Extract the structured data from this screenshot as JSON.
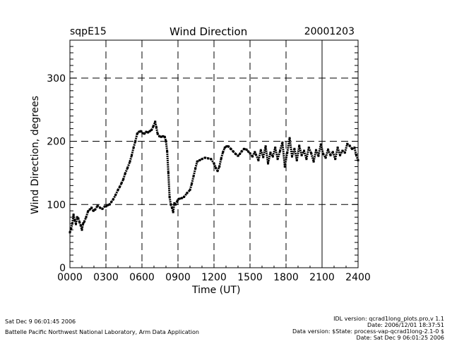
{
  "chart_data": {
    "type": "scatter",
    "title": "Wind Direction",
    "site": "sqpE15",
    "date": "20001203",
    "xlabel": "Time (UT)",
    "ylabel": "Wind Direction, degrees",
    "xlim": [
      0,
      24
    ],
    "ylim": [
      0,
      360
    ],
    "xticks": [
      0,
      3,
      6,
      9,
      12,
      15,
      18,
      21,
      24
    ],
    "xtick_labels": [
      "0000",
      "0300",
      "0600",
      "0900",
      "1200",
      "1500",
      "1800",
      "2100",
      "2400"
    ],
    "yticks": [
      0,
      100,
      200,
      300
    ],
    "ytick_labels": [
      "0",
      "100",
      "200",
      "300"
    ],
    "grid": "dashed at major ticks",
    "points": [
      [
        0.0,
        56
      ],
      [
        0.1,
        62
      ],
      [
        0.2,
        70
      ],
      [
        0.3,
        84
      ],
      [
        0.4,
        75
      ],
      [
        0.5,
        69
      ],
      [
        0.6,
        80
      ],
      [
        0.7,
        78
      ],
      [
        0.8,
        72
      ],
      [
        0.9,
        67
      ],
      [
        1.0,
        60
      ],
      [
        1.1,
        70
      ],
      [
        1.2,
        73
      ],
      [
        1.35,
        80
      ],
      [
        1.5,
        89
      ],
      [
        1.65,
        92
      ],
      [
        1.8,
        95
      ],
      [
        1.95,
        90
      ],
      [
        2.1,
        92
      ],
      [
        2.3,
        98
      ],
      [
        2.5,
        95
      ],
      [
        2.7,
        93
      ],
      [
        2.9,
        97
      ],
      [
        3.0,
        97
      ],
      [
        3.15,
        99
      ],
      [
        3.3,
        100
      ],
      [
        3.45,
        104
      ],
      [
        3.6,
        108
      ],
      [
        3.8,
        115
      ],
      [
        4.0,
        123
      ],
      [
        4.15,
        128
      ],
      [
        4.3,
        134
      ],
      [
        4.45,
        140
      ],
      [
        4.6,
        149
      ],
      [
        4.8,
        158
      ],
      [
        5.0,
        168
      ],
      [
        5.15,
        178
      ],
      [
        5.3,
        190
      ],
      [
        5.45,
        200
      ],
      [
        5.6,
        212
      ],
      [
        5.75,
        215
      ],
      [
        5.9,
        216
      ],
      [
        6.05,
        213
      ],
      [
        6.2,
        212
      ],
      [
        6.35,
        215
      ],
      [
        6.5,
        214
      ],
      [
        6.65,
        216
      ],
      [
        6.8,
        218
      ],
      [
        6.95,
        224
      ],
      [
        7.1,
        231
      ],
      [
        7.2,
        222
      ],
      [
        7.3,
        212
      ],
      [
        7.45,
        208
      ],
      [
        7.6,
        207
      ],
      [
        7.75,
        208
      ],
      [
        7.9,
        207
      ],
      [
        8.0,
        200
      ],
      [
        8.1,
        184
      ],
      [
        8.2,
        150
      ],
      [
        8.3,
        112
      ],
      [
        8.4,
        100
      ],
      [
        8.5,
        95
      ],
      [
        8.6,
        88
      ],
      [
        8.7,
        102
      ],
      [
        8.8,
        100
      ],
      [
        8.95,
        106
      ],
      [
        9.1,
        109
      ],
      [
        9.3,
        110
      ],
      [
        9.5,
        112
      ],
      [
        9.75,
        118
      ],
      [
        10.0,
        123
      ],
      [
        10.15,
        133
      ],
      [
        10.3,
        145
      ],
      [
        10.45,
        157
      ],
      [
        10.6,
        168
      ],
      [
        10.8,
        170
      ],
      [
        11.0,
        172
      ],
      [
        11.25,
        174
      ],
      [
        11.5,
        173
      ],
      [
        11.75,
        172
      ],
      [
        12.0,
        165
      ],
      [
        12.15,
        158
      ],
      [
        12.3,
        153
      ],
      [
        12.45,
        160
      ],
      [
        12.6,
        173
      ],
      [
        12.75,
        183
      ],
      [
        12.9,
        190
      ],
      [
        13.05,
        192
      ],
      [
        13.2,
        192
      ],
      [
        13.4,
        188
      ],
      [
        13.6,
        184
      ],
      [
        13.8,
        180
      ],
      [
        14.0,
        177
      ],
      [
        14.15,
        180
      ],
      [
        14.3,
        184
      ],
      [
        14.5,
        188
      ],
      [
        14.7,
        187
      ],
      [
        14.85,
        184
      ],
      [
        15.0,
        181
      ],
      [
        15.2,
        176
      ],
      [
        15.4,
        183
      ],
      [
        15.5,
        179
      ],
      [
        15.7,
        170
      ],
      [
        15.9,
        186
      ],
      [
        16.1,
        175
      ],
      [
        16.3,
        192
      ],
      [
        16.5,
        165
      ],
      [
        16.7,
        182
      ],
      [
        16.9,
        176
      ],
      [
        17.1,
        190
      ],
      [
        17.3,
        172
      ],
      [
        17.5,
        185
      ],
      [
        17.7,
        198
      ],
      [
        17.9,
        160
      ],
      [
        18.1,
        182
      ],
      [
        18.3,
        205
      ],
      [
        18.5,
        176
      ],
      [
        18.7,
        188
      ],
      [
        18.9,
        170
      ],
      [
        19.1,
        193
      ],
      [
        19.3,
        178
      ],
      [
        19.5,
        185
      ],
      [
        19.7,
        172
      ],
      [
        19.9,
        190
      ],
      [
        20.1,
        181
      ],
      [
        20.3,
        168
      ],
      [
        20.5,
        186
      ],
      [
        20.7,
        177
      ],
      [
        20.9,
        195
      ],
      [
        21.1,
        180
      ],
      [
        21.3,
        174
      ],
      [
        21.5,
        187
      ],
      [
        21.7,
        178
      ],
      [
        21.9,
        183
      ],
      [
        22.1,
        172
      ],
      [
        22.3,
        190
      ],
      [
        22.5,
        178
      ],
      [
        22.7,
        185
      ],
      [
        22.9,
        182
      ],
      [
        23.1,
        196
      ],
      [
        23.3,
        193
      ],
      [
        23.5,
        188
      ],
      [
        23.7,
        190
      ],
      [
        23.85,
        178
      ],
      [
        24.0,
        170
      ]
    ]
  },
  "footer": {
    "left_line1": "Sat Dec  9 06:01:45 2006",
    "left_line2": "Battelle Pacific Northwest National Laboratory, Arm Data Application",
    "right_line1": "IDL version: qcrad1long_plots.pro,v 1.1",
    "right_line2": "Date: 2006/12/01 18:37:51",
    "right_line3": "Data version: $State: process-vap-qcrad1long-2.1-0 $",
    "right_line4": "Date: Sat Dec  9 06:01:25 2006"
  }
}
